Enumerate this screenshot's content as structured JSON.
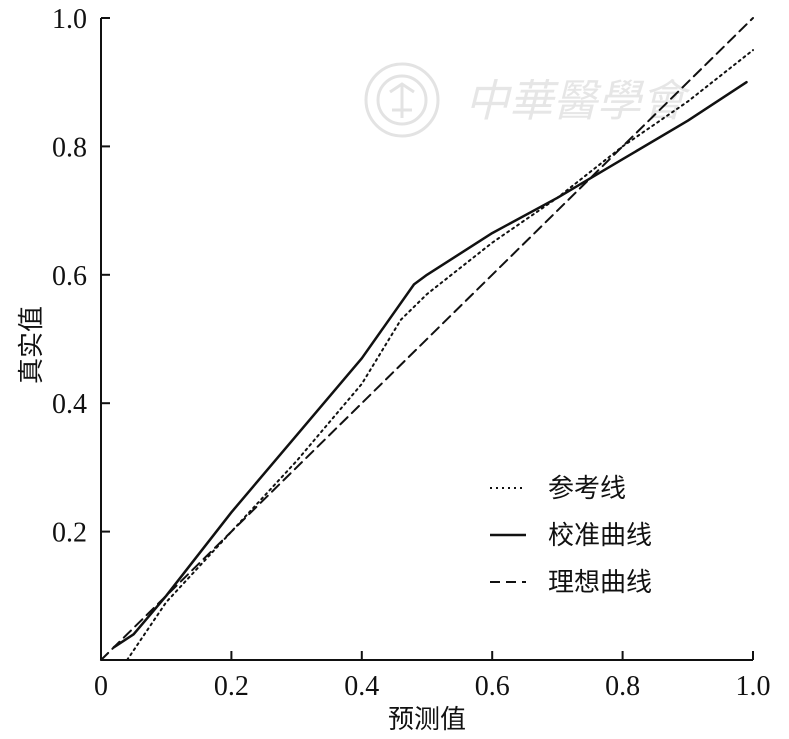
{
  "chart_data": {
    "type": "line",
    "title": "",
    "xlabel": "预测值",
    "ylabel": "真实值",
    "xlim": [
      0,
      1.0
    ],
    "ylim": [
      0,
      1.0
    ],
    "x_ticks": [
      {
        "value": 0,
        "label": "0"
      },
      {
        "value": 0.2,
        "label": "0.2"
      },
      {
        "value": 0.4,
        "label": "0.4"
      },
      {
        "value": 0.6,
        "label": "0.6"
      },
      {
        "value": 0.8,
        "label": "0.8"
      },
      {
        "value": 1.0,
        "label": "1.0"
      }
    ],
    "y_ticks": [
      {
        "value": 0.2,
        "label": "0.2"
      },
      {
        "value": 0.4,
        "label": "0.4"
      },
      {
        "value": 0.6,
        "label": "0.6"
      },
      {
        "value": 0.8,
        "label": "0.8"
      },
      {
        "value": 1.0,
        "label": "1.0"
      }
    ],
    "grid": false,
    "legend_position": "bottom-right",
    "series": [
      {
        "name": "参考线",
        "style": "dotted",
        "x": [
          0.04,
          0.1,
          0.2,
          0.3,
          0.4,
          0.46,
          0.5,
          0.6,
          0.7,
          0.8,
          0.9,
          1.0
        ],
        "y": [
          0.0,
          0.09,
          0.2,
          0.31,
          0.43,
          0.53,
          0.57,
          0.65,
          0.72,
          0.8,
          0.87,
          0.95
        ]
      },
      {
        "name": "校准曲线",
        "style": "solid",
        "x": [
          0.02,
          0.05,
          0.1,
          0.2,
          0.3,
          0.4,
          0.48,
          0.5,
          0.6,
          0.7,
          0.8,
          0.9,
          0.99
        ],
        "y": [
          0.02,
          0.04,
          0.1,
          0.23,
          0.35,
          0.47,
          0.585,
          0.6,
          0.665,
          0.72,
          0.78,
          0.84,
          0.9
        ]
      },
      {
        "name": "理想曲线",
        "style": "dashed",
        "x": [
          0.0,
          1.0
        ],
        "y": [
          0.0,
          1.0
        ]
      }
    ]
  },
  "watermark": {
    "text": "中華醫學會",
    "color": "#e6e6e6"
  }
}
